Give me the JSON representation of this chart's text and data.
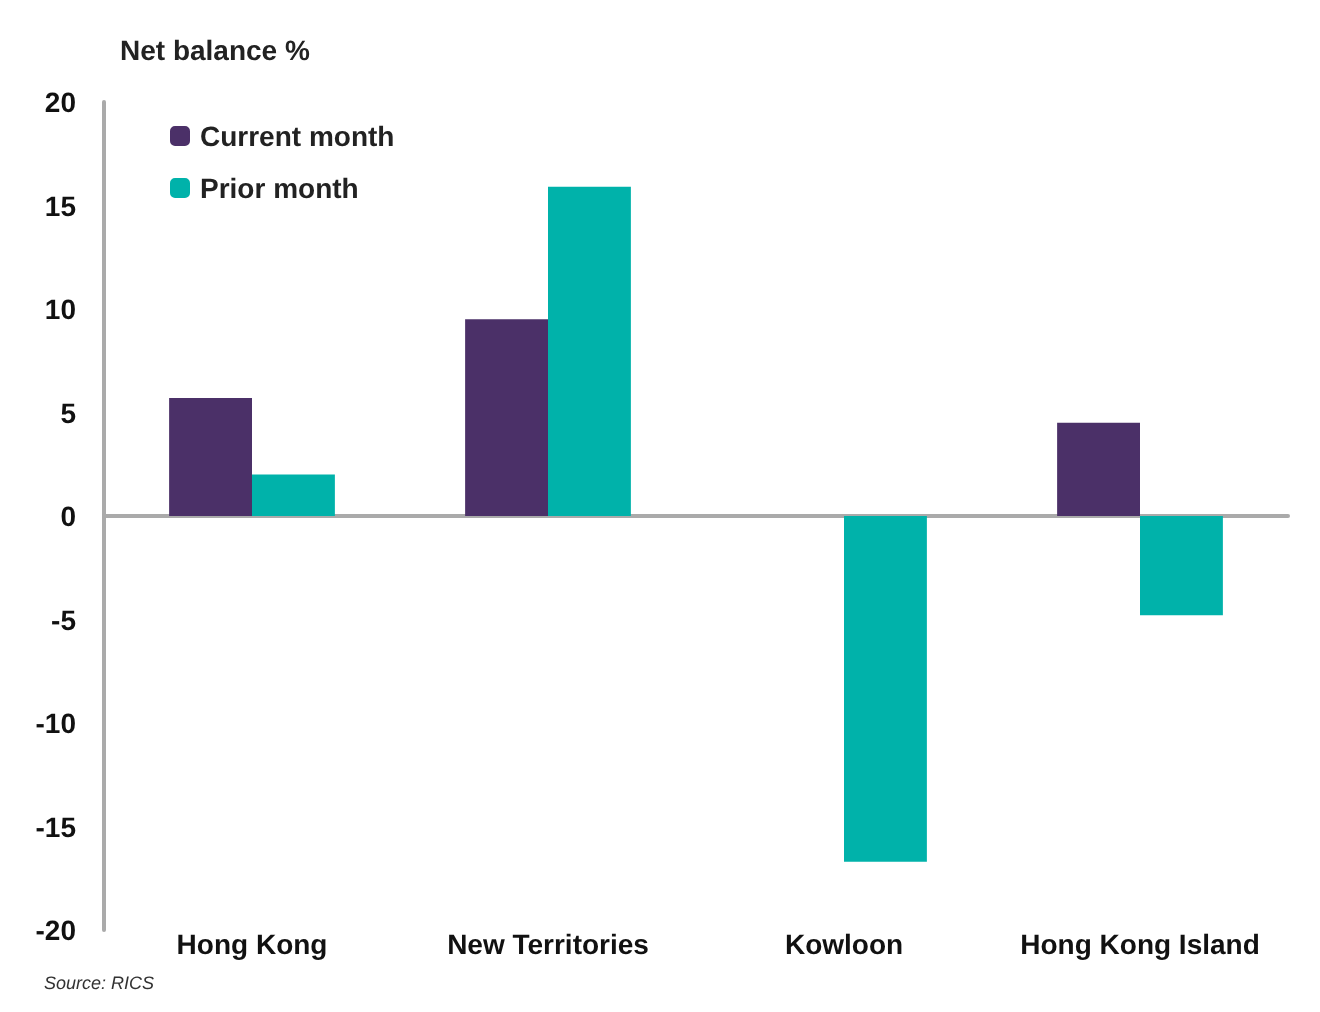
{
  "chart_data": {
    "type": "bar",
    "ylabel": "Net balance %",
    "categories": [
      "Hong Kong",
      "New Territories",
      "Kowloon",
      "Hong Kong Island"
    ],
    "series": [
      {
        "name": "Current month",
        "color": "#4b3068",
        "values": [
          5.7,
          9.5,
          0,
          4.5
        ]
      },
      {
        "name": "Prior month",
        "color": "#00b2aa",
        "values": [
          2.0,
          15.9,
          -16.7,
          -4.8
        ]
      }
    ],
    "ylim": [
      -20,
      20
    ],
    "yticks": [
      -20,
      -15,
      -10,
      -5,
      0,
      5,
      10,
      15,
      20
    ],
    "legend": "top left",
    "annotations": [
      "Source: RICS"
    ]
  }
}
